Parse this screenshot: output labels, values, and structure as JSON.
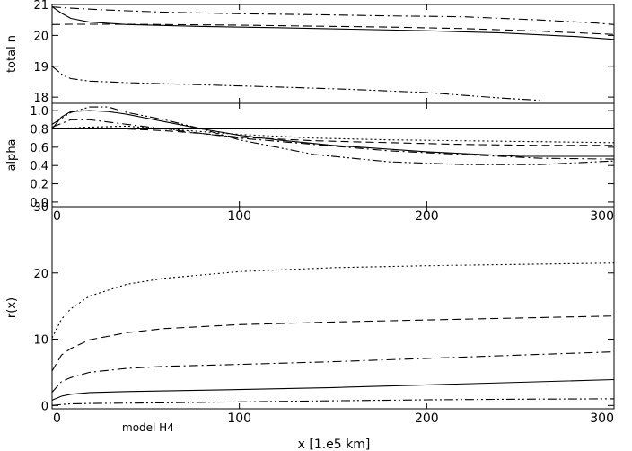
{
  "figure": {
    "annotation": "model H4",
    "xlabel": "x [1.e5 km]"
  },
  "chart_data": [
    {
      "type": "line",
      "ylabel": "total n",
      "xlim": [
        0,
        300
      ],
      "ylim": [
        17.8,
        21
      ],
      "y_ticks": [
        "21",
        "20",
        "19",
        "18"
      ],
      "x_ticks": [],
      "series": [
        {
          "style": "solid",
          "x": [
            0,
            5,
            10,
            20,
            40,
            80,
            120,
            160,
            200,
            240,
            280,
            300
          ],
          "y": [
            20.93,
            20.72,
            20.55,
            20.43,
            20.35,
            20.29,
            20.25,
            20.2,
            20.15,
            20.08,
            19.96,
            19.87
          ]
        },
        {
          "style": "dashed",
          "x": [
            0,
            10,
            30,
            60,
            100,
            140,
            180,
            220,
            260,
            300
          ],
          "y": [
            20.35,
            20.36,
            20.36,
            20.35,
            20.33,
            20.3,
            20.27,
            20.22,
            20.14,
            20.03
          ]
        },
        {
          "style": "dashdot",
          "x": [
            0,
            10,
            30,
            60,
            100,
            140,
            180,
            220,
            260,
            290,
            300
          ],
          "y": [
            20.92,
            20.88,
            20.82,
            20.75,
            20.7,
            20.67,
            20.63,
            20.6,
            20.5,
            20.4,
            20.35
          ]
        },
        {
          "style": "dashdotdot",
          "x": [
            0,
            3,
            6,
            10,
            20,
            40,
            80,
            120,
            160,
            200,
            240,
            260
          ],
          "y": [
            19.0,
            18.85,
            18.7,
            18.6,
            18.52,
            18.47,
            18.4,
            18.33,
            18.25,
            18.15,
            17.97,
            17.9
          ]
        }
      ]
    },
    {
      "type": "line",
      "ylabel": "alpha",
      "xlim": [
        0,
        300
      ],
      "ylim": [
        -0.05,
        1.08
      ],
      "y_ticks": [
        "1.0",
        "0.8",
        "0.6",
        "0.4",
        "0.2",
        "0.0"
      ],
      "x_ticks": [
        "0",
        "100",
        "200",
        "300"
      ],
      "reference_line": 0.8,
      "series": [
        {
          "style": "solid",
          "x": [
            0,
            5,
            10,
            20,
            30,
            40,
            60,
            80,
            100,
            120,
            150,
            200,
            250,
            300
          ],
          "y": [
            0.8,
            0.93,
            0.99,
            1.0,
            0.99,
            0.96,
            0.88,
            0.8,
            0.73,
            0.68,
            0.62,
            0.55,
            0.5,
            0.5
          ]
        },
        {
          "style": "dotted",
          "x": [
            0,
            20,
            40,
            60,
            80,
            100,
            140,
            180,
            220,
            260,
            300
          ],
          "y": [
            0.8,
            0.82,
            0.83,
            0.8,
            0.77,
            0.74,
            0.7,
            0.68,
            0.67,
            0.66,
            0.65
          ]
        },
        {
          "style": "dashed",
          "x": [
            0,
            20,
            40,
            60,
            80,
            100,
            140,
            180,
            220,
            260,
            300
          ],
          "y": [
            0.8,
            0.81,
            0.8,
            0.78,
            0.75,
            0.71,
            0.67,
            0.65,
            0.63,
            0.62,
            0.62
          ]
        },
        {
          "style": "dashdot",
          "x": [
            0,
            10,
            20,
            40,
            60,
            80,
            100,
            140,
            180,
            220,
            260,
            300
          ],
          "y": [
            0.82,
            0.9,
            0.9,
            0.85,
            0.8,
            0.75,
            0.7,
            0.63,
            0.56,
            0.52,
            0.48,
            0.47
          ]
        },
        {
          "style": "dashdotdot",
          "x": [
            0,
            10,
            20,
            30,
            40,
            60,
            80,
            100,
            140,
            180,
            220,
            260,
            300
          ],
          "y": [
            0.85,
            0.98,
            1.04,
            1.04,
            0.98,
            0.9,
            0.8,
            0.68,
            0.52,
            0.44,
            0.41,
            0.41,
            0.45
          ]
        }
      ]
    },
    {
      "type": "line",
      "ylabel": "r(x)",
      "xlim": [
        0,
        300
      ],
      "ylim": [
        -0.5,
        30
      ],
      "y_ticks": [
        "30",
        "20",
        "10",
        "0"
      ],
      "x_ticks": [
        "0",
        "100",
        "200",
        "300"
      ],
      "series": [
        {
          "style": "dotted",
          "x": [
            0,
            5,
            10,
            20,
            40,
            60,
            100,
            150,
            200,
            250,
            300
          ],
          "y": [
            10.2,
            13.0,
            14.6,
            16.5,
            18.3,
            19.2,
            20.2,
            20.8,
            21.1,
            21.3,
            21.5
          ]
        },
        {
          "style": "dashed",
          "x": [
            0,
            5,
            10,
            20,
            40,
            60,
            100,
            150,
            200,
            250,
            300
          ],
          "y": [
            5.2,
            7.6,
            8.6,
            9.9,
            11.0,
            11.6,
            12.2,
            12.6,
            12.9,
            13.2,
            13.5
          ]
        },
        {
          "style": "dashdot",
          "x": [
            0,
            5,
            10,
            20,
            40,
            60,
            100,
            150,
            200,
            250,
            300
          ],
          "y": [
            2.0,
            3.6,
            4.2,
            5.0,
            5.6,
            5.9,
            6.2,
            6.6,
            7.1,
            7.6,
            8.1
          ]
        },
        {
          "style": "solid",
          "x": [
            0,
            5,
            10,
            20,
            40,
            60,
            100,
            150,
            200,
            250,
            300
          ],
          "y": [
            0.8,
            1.4,
            1.7,
            1.95,
            2.1,
            2.2,
            2.4,
            2.7,
            3.1,
            3.5,
            3.9
          ]
        },
        {
          "style": "dashdotdot",
          "x": [
            0,
            5,
            10,
            20,
            40,
            60,
            100,
            150,
            200,
            250,
            300
          ],
          "y": [
            0.0,
            0.15,
            0.25,
            0.3,
            0.35,
            0.4,
            0.55,
            0.7,
            0.85,
            0.95,
            1.0
          ]
        }
      ]
    }
  ]
}
